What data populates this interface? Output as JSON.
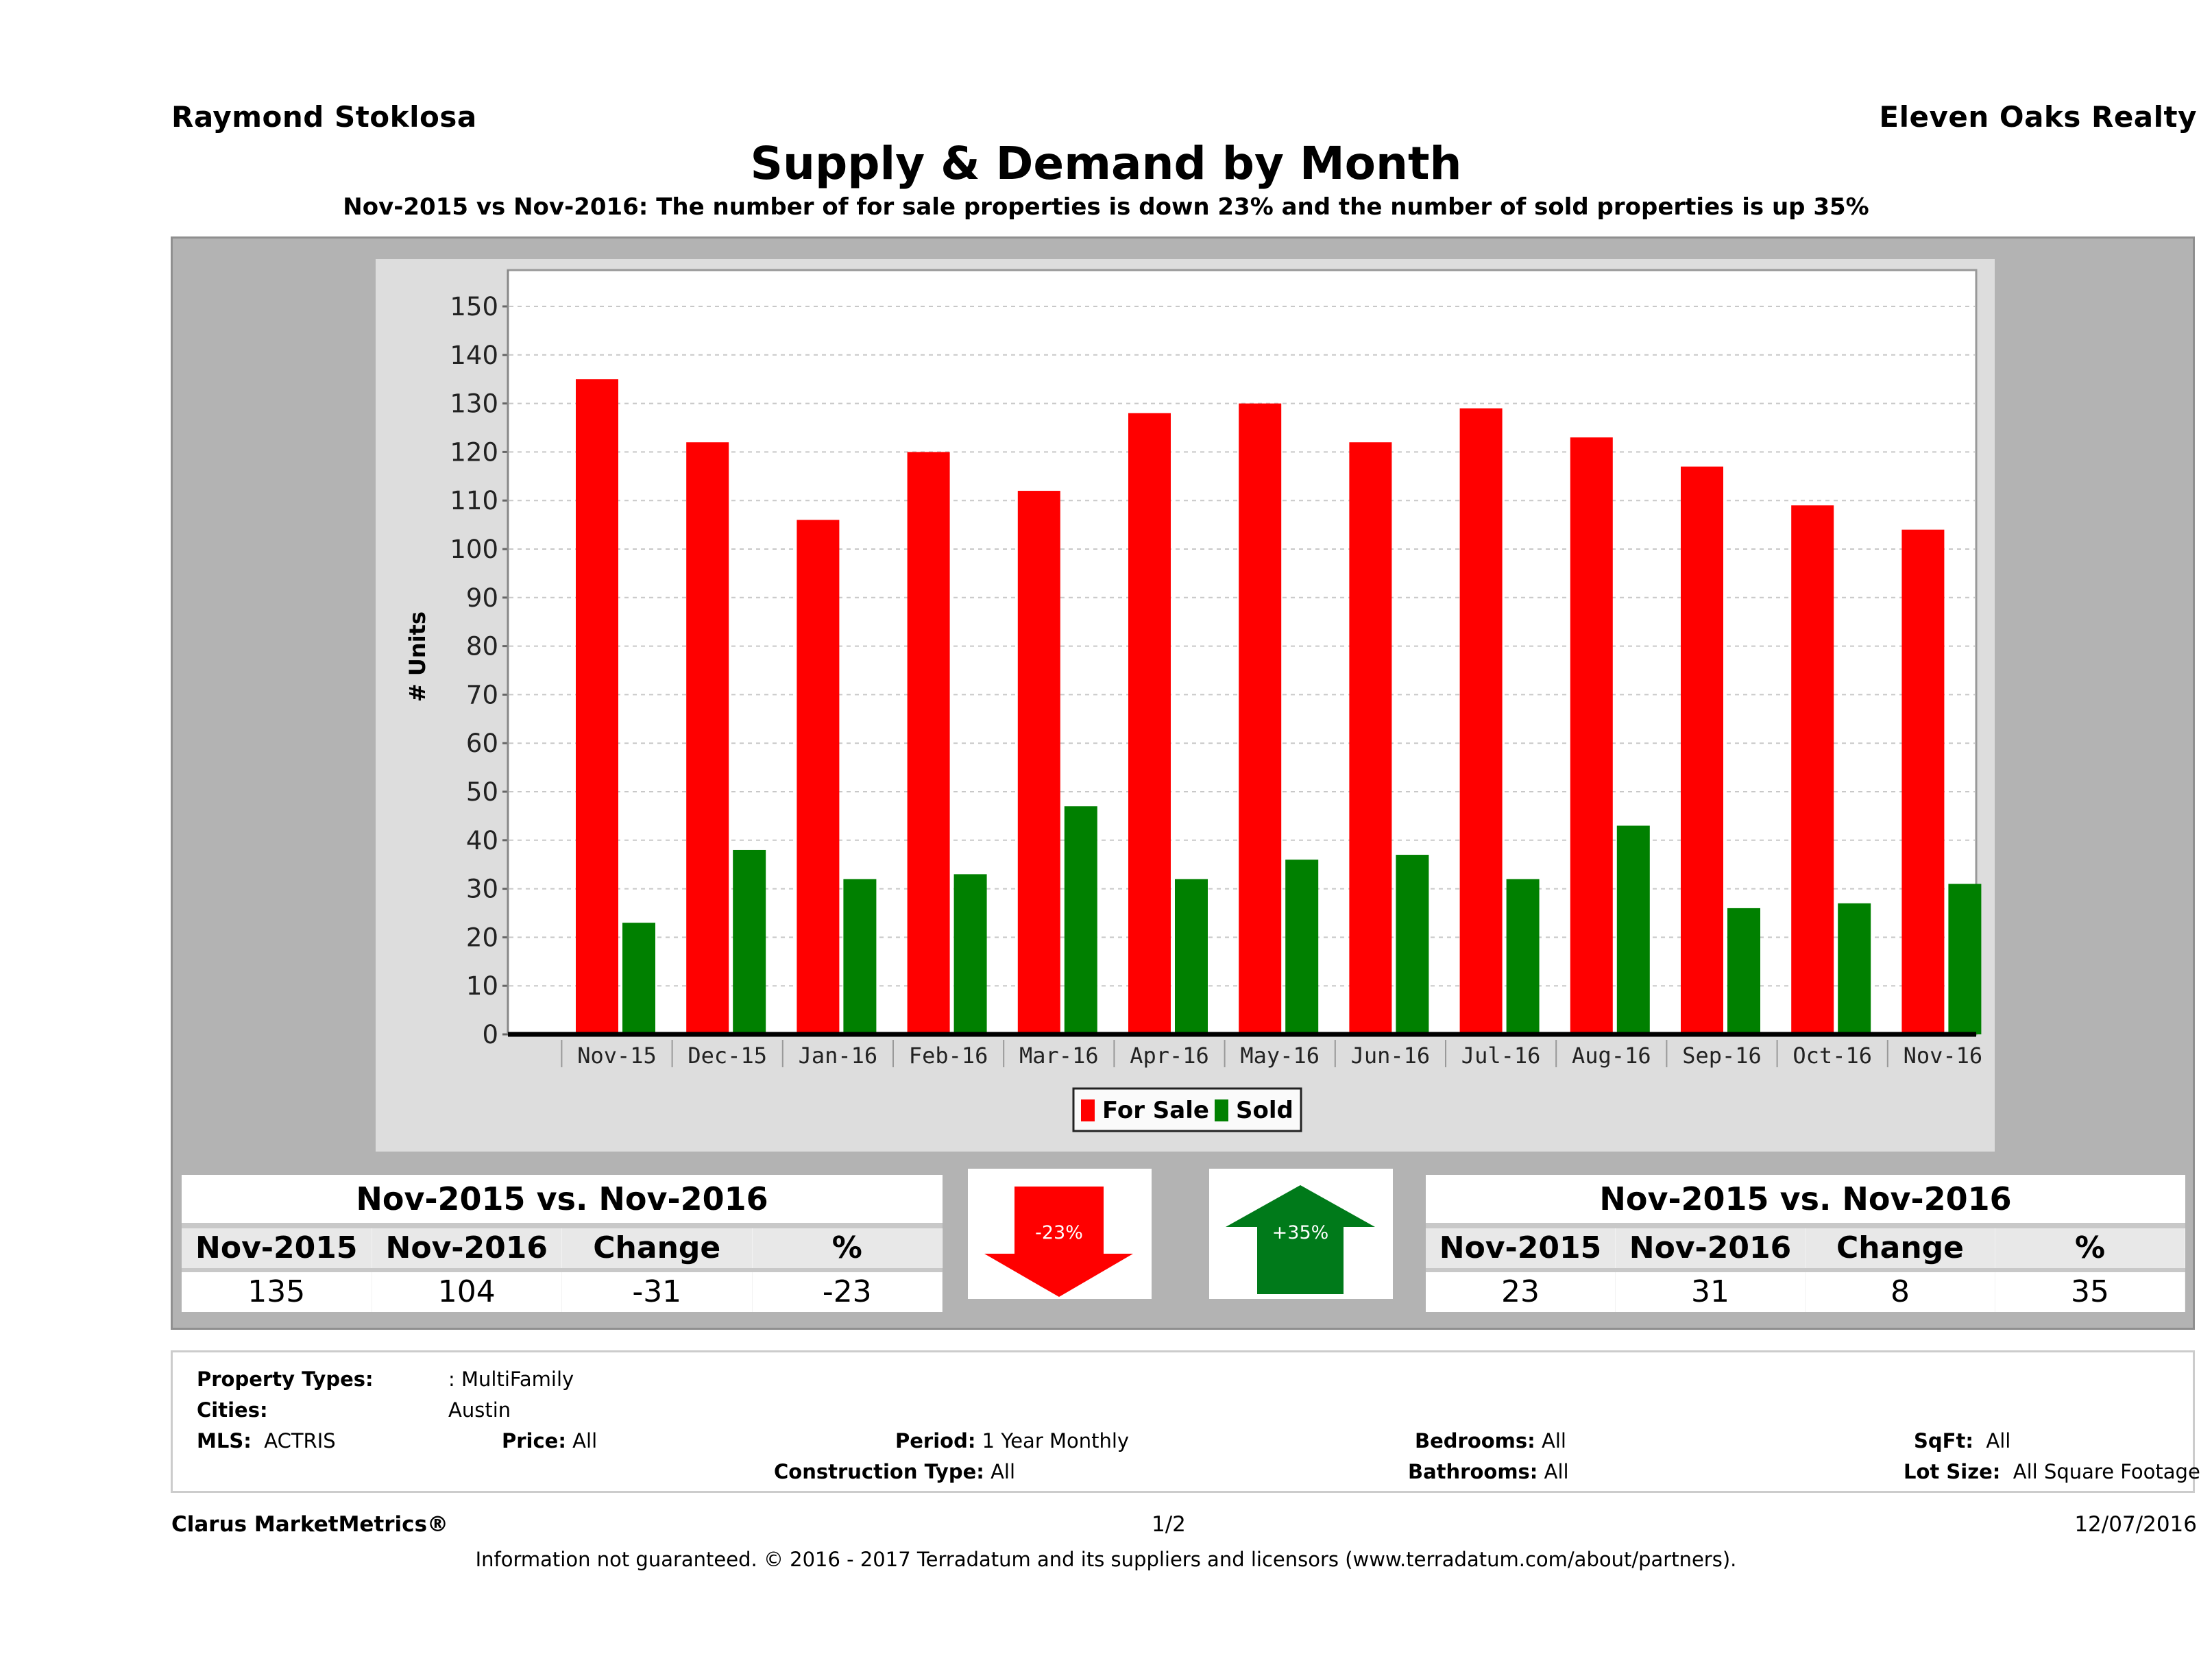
{
  "header": {
    "agent_name": "Raymond Stoklosa",
    "brokerage": "Eleven Oaks Realty",
    "title": "Supply & Demand by Month",
    "subtitle": "Nov-2015 vs Nov-2016: The number of for sale properties is down 23% and the number of sold properties is up 35%"
  },
  "colors": {
    "for_sale": "#ff0000",
    "sold": "#008000",
    "panel_gray": "#b3b3b3",
    "chart_bg": "#dddddd"
  },
  "chart_data": {
    "type": "bar",
    "title": "Supply & Demand by Month",
    "xlabel": "",
    "ylabel": "# Units",
    "ylim": [
      0,
      150
    ],
    "yticks": [
      0,
      10,
      20,
      30,
      40,
      50,
      60,
      70,
      80,
      90,
      100,
      110,
      120,
      130,
      140,
      150
    ],
    "grid": true,
    "legend_position": "bottom-center",
    "categories": [
      "Nov-15",
      "Dec-15",
      "Jan-16",
      "Feb-16",
      "Mar-16",
      "Apr-16",
      "May-16",
      "Jun-16",
      "Jul-16",
      "Aug-16",
      "Sep-16",
      "Oct-16",
      "Nov-16"
    ],
    "series": [
      {
        "name": "For Sale",
        "color": "#ff0000",
        "values": [
          135,
          122,
          106,
          120,
          112,
          128,
          130,
          122,
          129,
          123,
          117,
          109,
          104
        ]
      },
      {
        "name": "Sold",
        "color": "#008000",
        "values": [
          23,
          38,
          32,
          33,
          47,
          32,
          36,
          37,
          32,
          43,
          26,
          27,
          31
        ]
      }
    ]
  },
  "for_sale_comparison": {
    "title": "Nov-2015 vs. Nov-2016",
    "headers": [
      "Nov-2015",
      "Nov-2016",
      "Change",
      "%"
    ],
    "values": [
      "135",
      "104",
      "-31",
      "-23"
    ],
    "arrow_label": "-23%",
    "arrow_direction": "down"
  },
  "sold_comparison": {
    "title": "Nov-2015 vs. Nov-2016",
    "headers": [
      "Nov-2015",
      "Nov-2016",
      "Change",
      "%"
    ],
    "values": [
      "23",
      "31",
      "8",
      "35"
    ],
    "arrow_label": "+35%",
    "arrow_direction": "up"
  },
  "criteria": {
    "property_types_label": "Property Types:",
    "property_types_value": ": MultiFamily",
    "cities_label": "Cities:",
    "cities_value": "Austin",
    "mls_label": "MLS:",
    "mls_value": "ACTRIS",
    "price_label": "Price:",
    "price_value": "All",
    "period_label": "Period:",
    "period_value": "1 Year Monthly",
    "construction_label": "Construction Type:",
    "construction_value": "All",
    "bedrooms_label": "Bedrooms:",
    "bedrooms_value": "All",
    "bathrooms_label": "Bathrooms:",
    "bathrooms_value": "All",
    "sqft_label": "SqFt:",
    "sqft_value": "All",
    "lot_size_label": "Lot Size:",
    "lot_size_value": "All Square Footage"
  },
  "footer": {
    "brand": "Clarus MarketMetrics®",
    "page": "1/2",
    "date": "12/07/2016",
    "disclaimer": "Information not guaranteed. © 2016 - 2017 Terradatum and its suppliers and licensors (www.terradatum.com/about/partners)."
  }
}
